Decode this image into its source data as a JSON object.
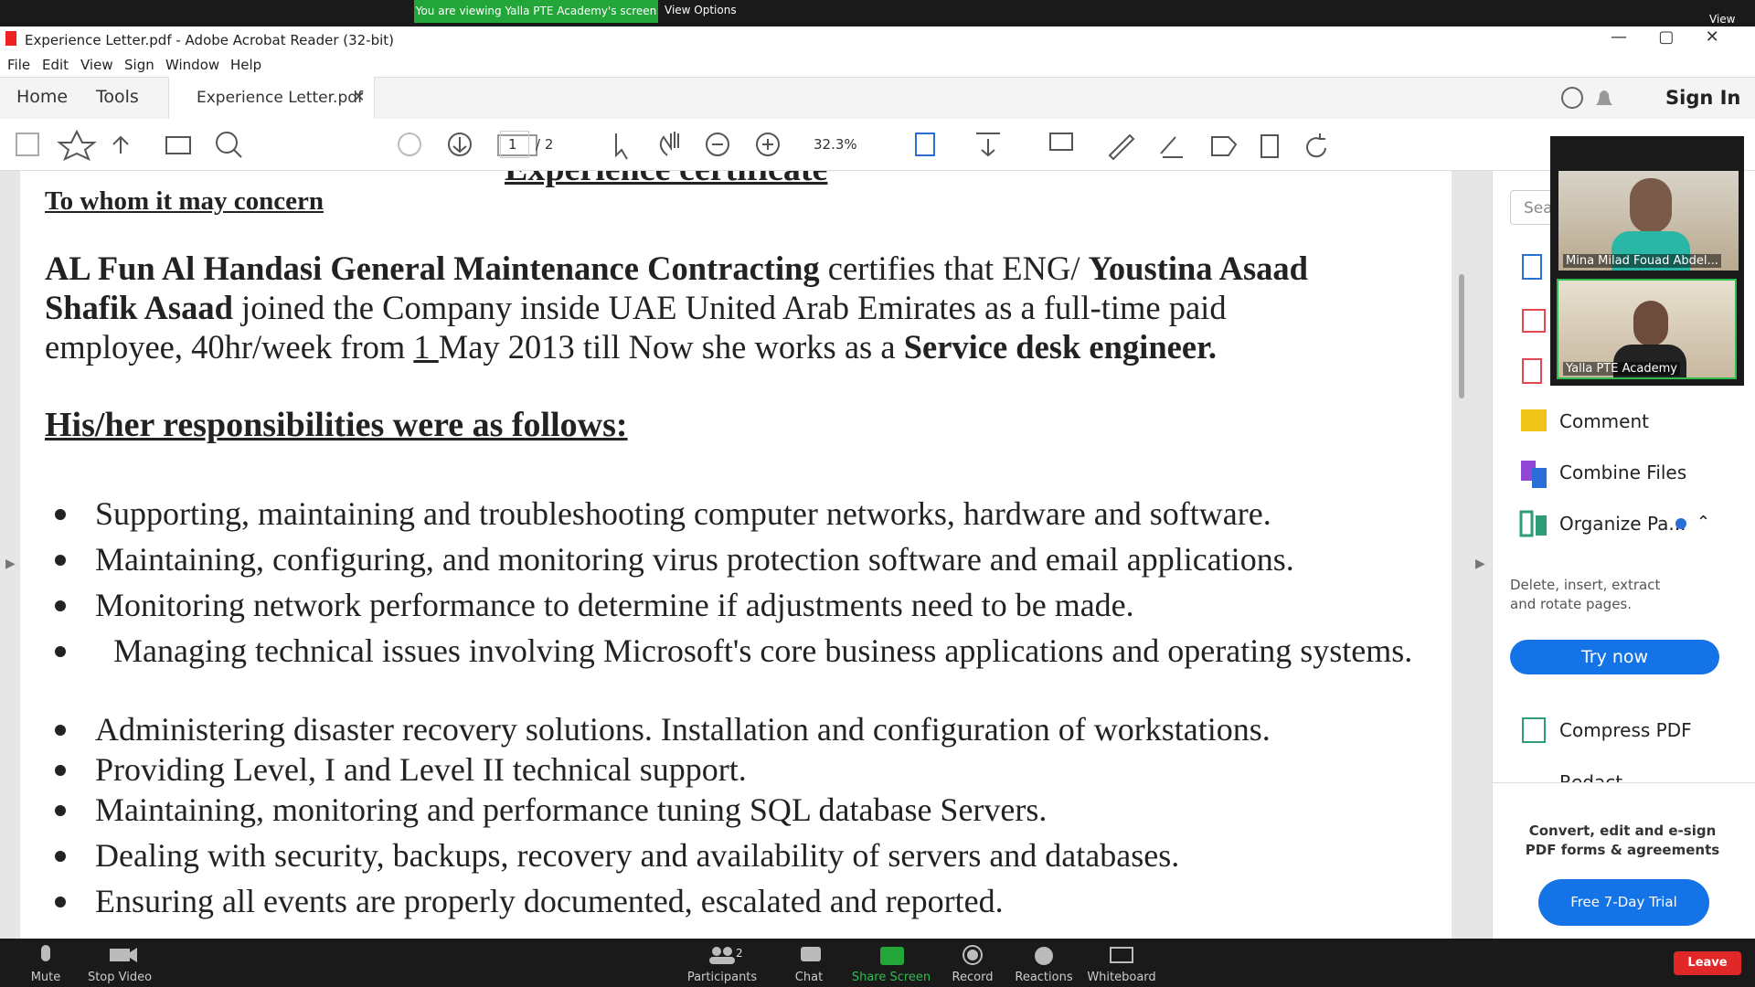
{
  "meeting_bar": {
    "banner": "You are viewing Yalla PTE Academy's screen",
    "view_options": "View Options",
    "view": "View"
  },
  "window": {
    "title": "Experience Letter.pdf - Adobe Acrobat Reader (32-bit)"
  },
  "menu": [
    "File",
    "Edit",
    "View",
    "Sign",
    "Window",
    "Help"
  ],
  "tabs": {
    "home": "Home",
    "tools": "Tools",
    "document_tab": "Experience Letter.pdf",
    "sign_in": "Sign In"
  },
  "toolbar": {
    "page": "1",
    "total_pages": "/ 2",
    "zoom": "32.3%"
  },
  "document": {
    "heading": "Experience certificate",
    "salutation": "To whom it may concern",
    "paragraph": [
      {
        "text": "AL Fun Al Handasi General Maintenance Contracting",
        "bold": true
      },
      {
        "text": " certifies that ENG/ "
      },
      {
        "text": "Youstina Asaad Shafik Asaad",
        "bold": true
      },
      {
        "text": " joined the Company inside UAE United Arab Emirates as a full-time paid employee, 40hr/week from "
      },
      {
        "text": "1 ",
        "underline": true
      },
      {
        "text": "May 2013 till Now she works as a "
      },
      {
        "text": "Service desk engineer.",
        "bold": true
      }
    ],
    "responsibilities_heading": "His/her responsibilities were as follows:",
    "bullets": [
      "Supporting, maintaining and troubleshooting computer networks, hardware and software.",
      "Maintaining, configuring, and monitoring virus protection software and email applications.",
      "Monitoring network performance to determine if adjustments need to be made.",
      "Managing technical issues involving Microsoft's core business applications and operating systems.",
      "Administering disaster recovery solutions. Installation and configuration of workstations.",
      "Providing Level, I and Level II technical support.",
      "Maintaining, monitoring and performance tuning SQL database Servers.",
      "Dealing with security, backups, recovery and availability of servers and databases.",
      "Ensuring all events are properly documented, escalated and reported."
    ]
  },
  "right_panel": {
    "search": "Sea",
    "tools": [
      "Comment",
      "Combine Files",
      "Organize Pa..."
    ],
    "organize_description": "Delete, insert, extract and rotate pages.",
    "try_now": "Try now",
    "compress": "Compress PDF",
    "redact": "Redact",
    "promo": "Convert, edit and e-sign PDF forms & agreements",
    "trial": "Free 7-Day Trial"
  },
  "videos": [
    "Mina Milad Fouad Abdel...",
    "Yalla PTE Academy"
  ],
  "zoom_controls": {
    "mute": "Mute",
    "stop_video": "Stop Video",
    "participants": "Participants",
    "participant_count": "2",
    "chat": "Chat",
    "share_screen": "Share Screen",
    "record": "Record",
    "reactions": "Reactions",
    "whiteboard": "Whiteboard",
    "leave": "Leave"
  }
}
